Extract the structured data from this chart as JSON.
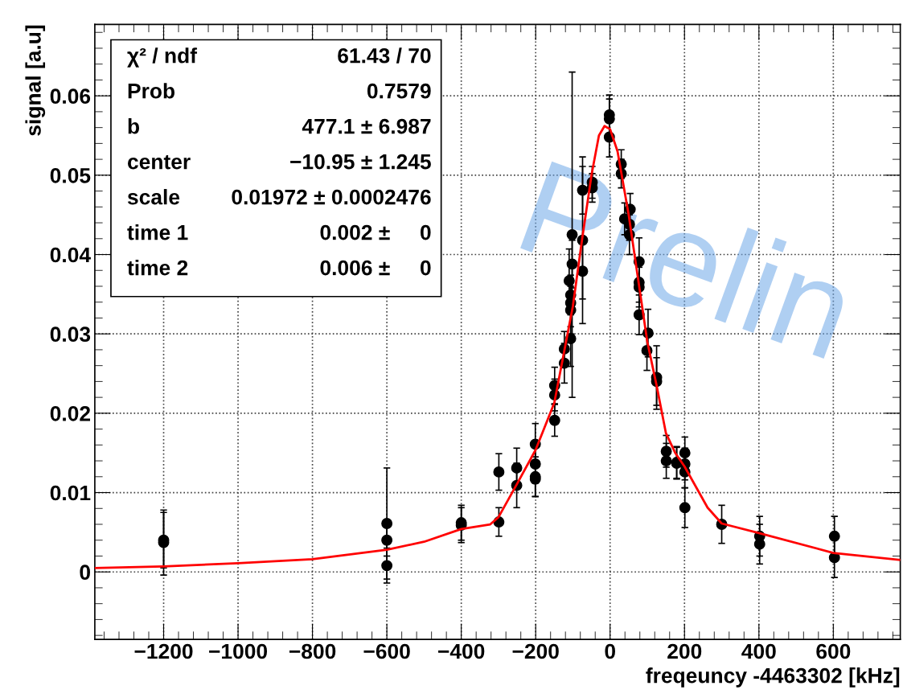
{
  "chart_data": {
    "type": "scatter",
    "xlabel": "freqeuncy -4463302 [kHz]",
    "ylabel": "signal [a.u]",
    "xlim": [
      -1385,
      780
    ],
    "ylim": [
      -0.0085,
      0.069
    ],
    "xticks": [
      {
        "value": -1200,
        "label": "−1200"
      },
      {
        "value": -1000,
        "label": "−1000"
      },
      {
        "value": -800,
        "label": "−800"
      },
      {
        "value": -600,
        "label": "−600"
      },
      {
        "value": -400,
        "label": "−400"
      },
      {
        "value": -200,
        "label": "−200"
      },
      0,
      200,
      400,
      600
    ],
    "yticks": [
      0,
      0.01,
      0.02,
      0.03,
      0.04,
      0.05,
      0.06
    ],
    "grid": true,
    "marker": "circle",
    "series": [
      {
        "color": "#000000",
        "x": [
          -1200,
          -1200,
          -600,
          -600,
          -600,
          -400,
          -400,
          -299,
          -299,
          -251,
          -251,
          -201,
          -201,
          -201,
          -201,
          -149,
          -149,
          -149,
          -123,
          -123,
          -110,
          -106,
          -106,
          -106,
          -106,
          -102,
          -102,
          -74,
          -74,
          -74,
          -48,
          -48,
          -2,
          -2,
          -2,
          30,
          30,
          39,
          52,
          54,
          52,
          78,
          78,
          78,
          78,
          102,
          99,
          125,
          125,
          151,
          151,
          179,
          179,
          201,
          201,
          201,
          201,
          300,
          402,
          402,
          603,
          603
        ],
        "values": [
          0.004,
          0.0037,
          0.0061,
          0.004,
          0.0008,
          0.0062,
          0.0059,
          0.0126,
          0.0063,
          0.0131,
          0.0109,
          0.0161,
          0.0136,
          0.012,
          0.0117,
          0.0235,
          0.0223,
          0.0191,
          0.0281,
          0.0263,
          0.0367,
          0.0349,
          0.0339,
          0.033,
          0.0294,
          0.0425,
          0.0388,
          0.0481,
          0.0418,
          0.0379,
          0.0491,
          0.0484,
          0.0576,
          0.0571,
          0.0548,
          0.0514,
          0.0502,
          0.0445,
          0.0438,
          0.0457,
          0.0425,
          0.0391,
          0.0365,
          0.0359,
          0.0324,
          0.0301,
          0.0279,
          0.0245,
          0.024,
          0.0152,
          0.014,
          0.0138,
          0.0137,
          0.015,
          0.0136,
          0.0126,
          0.0081,
          0.006,
          0.0045,
          0.0035,
          0.0045,
          0.0018
        ],
        "errors": [
          0.0035,
          0.0041,
          0.007,
          0.002,
          0.0022,
          0.0022,
          0.0022,
          0.0023,
          0.0018,
          0.0025,
          0.0028,
          0.0026,
          0.0024,
          0.0025,
          0.0022,
          0.0023,
          0.002,
          0.002,
          0.0022,
          0.0025,
          0.004,
          0.0025,
          0.003,
          0.003,
          0.0035,
          0.0205,
          0.003,
          0.003,
          0.0105,
          0.0035,
          0.002,
          0.0018,
          0.0025,
          0.0025,
          0.0025,
          0.0018,
          0.0018,
          0.002,
          0.002,
          0.002,
          0.0025,
          0.003,
          0.0025,
          0.0025,
          0.0025,
          0.003,
          0.0025,
          0.004,
          0.003,
          0.002,
          0.0022,
          0.002,
          0.002,
          0.002,
          0.002,
          0.002,
          0.0025,
          0.0024,
          0.0025,
          0.0025,
          0.0025,
          0.0025
        ]
      },
      {
        "type": "line",
        "color": "#ff0000",
        "marker": "none",
        "line_style": "solid",
        "x": [
          -1385,
          -1200,
          -1000,
          -800,
          -600,
          -500,
          -400,
          -322,
          -300,
          -250,
          -200,
          -150,
          -100,
          -75,
          -50,
          -30,
          -15,
          0,
          20,
          50,
          75,
          100,
          125,
          150,
          175,
          200,
          262,
          300,
          400,
          600,
          780
        ],
        "values": [
          0.0005,
          0.0007,
          0.0011,
          0.0016,
          0.0028,
          0.0038,
          0.0054,
          0.006,
          0.0069,
          0.0111,
          0.0154,
          0.0213,
          0.0335,
          0.042,
          0.05,
          0.055,
          0.0562,
          0.0558,
          0.053,
          0.045,
          0.037,
          0.029,
          0.0235,
          0.0175,
          0.015,
          0.0133,
          0.0081,
          0.0061,
          0.0049,
          0.0024,
          0.0015
        ]
      }
    ],
    "annotations": [
      "χ² / ndf",
      "61.43 / 70",
      "Prob",
      "0.7579",
      "b",
      "477.1 ± 6.987",
      "center",
      "−10.95 ± 1.245",
      "scale",
      "0.01972 ± 0.0002476",
      "time 1",
      "0.002 ±     0",
      "time 2",
      "0.006 ±     0",
      "Prelin"
    ]
  }
}
